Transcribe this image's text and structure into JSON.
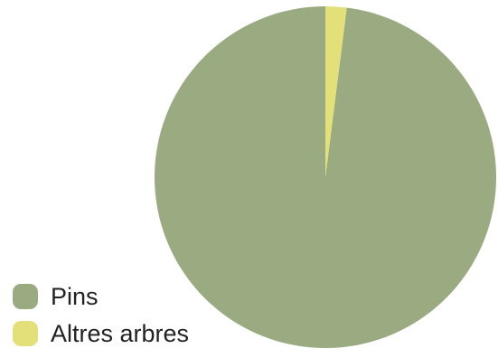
{
  "chart_data": {
    "type": "pie",
    "categories": [
      "Pins",
      "Altres arbres"
    ],
    "values": [
      98,
      2
    ],
    "colors": [
      "#9aab82",
      "#e3e07a"
    ],
    "title": "",
    "legend_position": "bottom-left",
    "start_angle_deg": -90,
    "direction": "counterclockwise"
  },
  "legend": {
    "items": [
      {
        "label": "Pins",
        "color": "#9aab82"
      },
      {
        "label": "Altres arbres",
        "color": "#e3e07a"
      }
    ]
  }
}
